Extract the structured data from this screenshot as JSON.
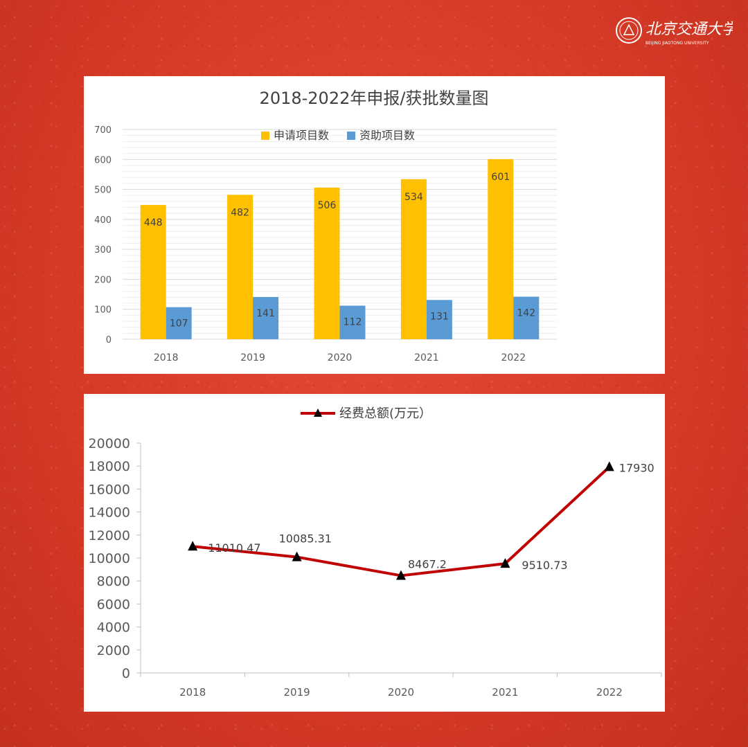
{
  "logo": {
    "name_cn": "北京交通大学",
    "name_en": "BEIJING JIAOTONG UNIVERSITY"
  },
  "colors": {
    "applied": "#FFC000",
    "funded": "#5B9BD5",
    "line": "#C00000",
    "background": "#d63b27"
  },
  "chart_data": [
    {
      "type": "bar",
      "title": "2018-2022年申报/获批数量图",
      "categories": [
        "2018",
        "2019",
        "2020",
        "2021",
        "2022"
      ],
      "series": [
        {
          "name": "申请项目数",
          "values": [
            448,
            482,
            506,
            534,
            601
          ]
        },
        {
          "name": "资助项目数",
          "values": [
            107,
            141,
            112,
            131,
            142
          ]
        }
      ],
      "ylim": [
        0,
        700
      ],
      "yticks": [
        "0",
        "100",
        "200",
        "300",
        "400",
        "500",
        "600",
        "700"
      ],
      "grid": true,
      "legend": "top"
    },
    {
      "type": "line",
      "title": "",
      "categories": [
        "2018",
        "2019",
        "2020",
        "2021",
        "2022"
      ],
      "series": [
        {
          "name": "经费总额(万元）",
          "values": [
            11010.47,
            10085.31,
            8467.2,
            9510.73,
            17930
          ]
        }
      ],
      "value_labels": [
        "11010.47",
        "10085.31",
        "8467.2",
        "9510.73",
        "17930"
      ],
      "ylim": [
        0,
        20000
      ],
      "yticks": [
        "0",
        "2000",
        "4000",
        "6000",
        "8000",
        "10000",
        "12000",
        "14000",
        "16000",
        "18000",
        "20000"
      ],
      "grid": false,
      "legend": "top",
      "marker": "triangle"
    }
  ]
}
